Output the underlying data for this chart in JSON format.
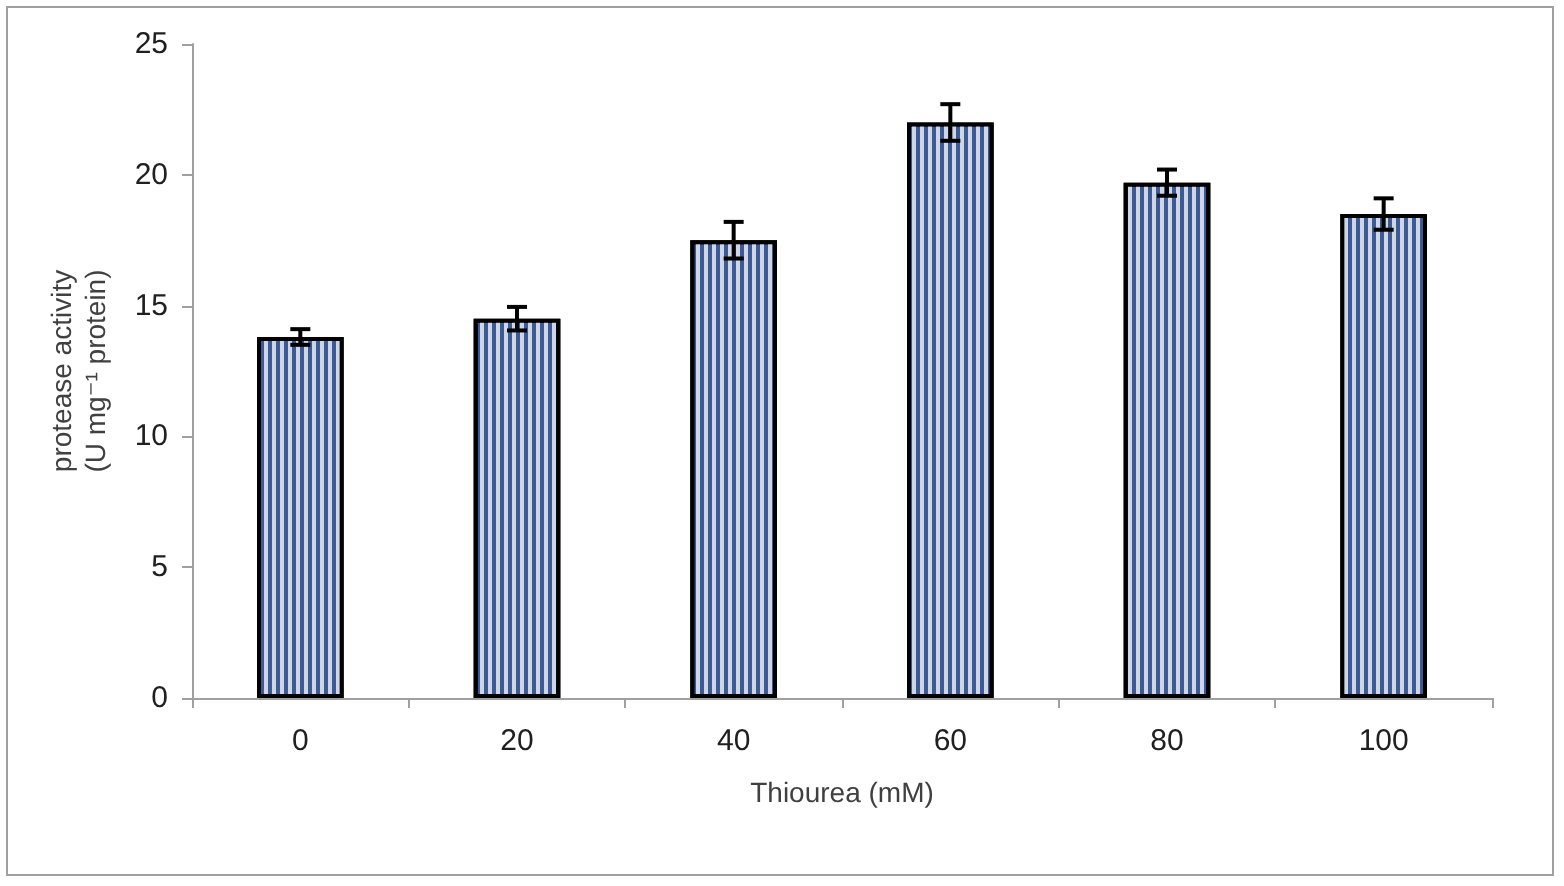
{
  "chart_data": {
    "type": "bar",
    "xlabel": "Thiourea (mM)",
    "ylabel": "protease activity\n(U mg⁻¹ protein)",
    "categories": [
      "0",
      "20",
      "40",
      "60",
      "80",
      "100"
    ],
    "values": [
      13.8,
      14.5,
      17.5,
      22,
      19.7,
      18.5
    ],
    "errors": [
      0.3,
      0.45,
      0.7,
      0.7,
      0.5,
      0.6
    ],
    "color": "#3c5a96",
    "ylim": [
      0,
      25
    ],
    "yticks": [
      0,
      5,
      10,
      15,
      20,
      25
    ]
  }
}
